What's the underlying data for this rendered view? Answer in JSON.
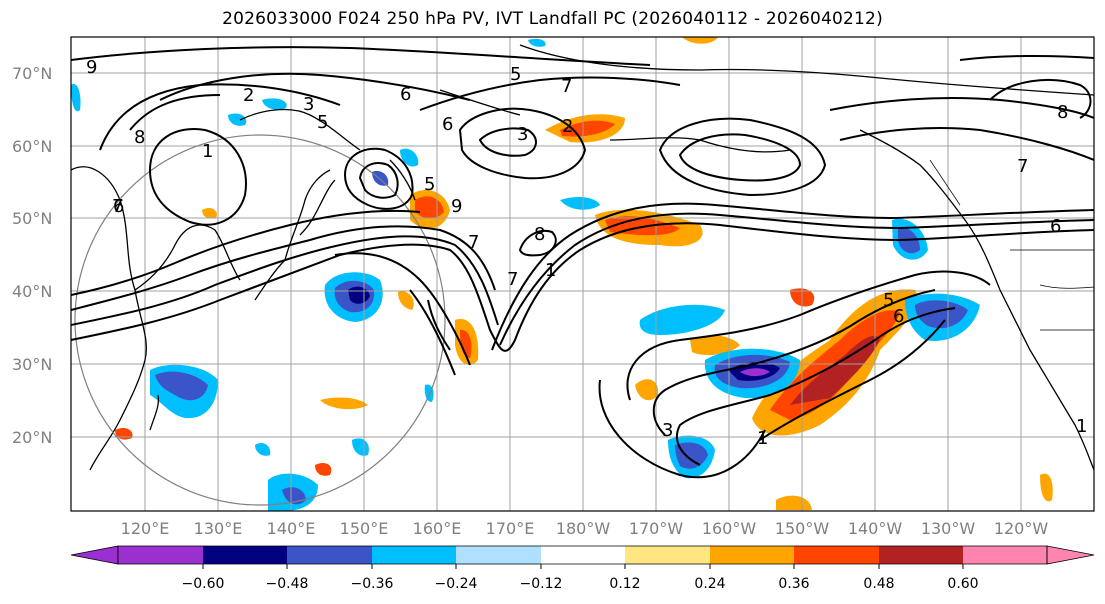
{
  "title": "2026033000 F024 250 hPa PV, IVT Landfall PC (2026040112 - 2026040212)",
  "lat_labels": [
    "70°N",
    "60°N",
    "50°N",
    "40°N",
    "30°N",
    "20°N"
  ],
  "lon_labels": [
    "120°E",
    "130°E",
    "140°E",
    "150°E",
    "160°E",
    "170°E",
    "180°W",
    "170°W",
    "160°W",
    "150°W",
    "140°W",
    "130°W",
    "120°W"
  ],
  "colorbar": {
    "tick_labels": [
      "−0.60",
      "−0.48",
      "−0.36",
      "−0.24",
      "−0.12",
      "0.12",
      "0.24",
      "0.36",
      "0.48",
      "0.60"
    ],
    "colors": [
      "#9b30d0",
      "#000080",
      "#3a55c8",
      "#00bfff",
      "#b0e0ff",
      "#ffffff",
      "#ffe680",
      "#ffa500",
      "#ff4500",
      "#b22222",
      "#ff85b0"
    ]
  },
  "pv_contour_labels": [
    "9",
    "8",
    "1",
    "7",
    "2",
    "3",
    "5",
    "6",
    "7",
    "5",
    "7",
    "3",
    "6",
    "5",
    "9",
    "8",
    "7",
    "2",
    "1",
    "1",
    "6",
    "3",
    "5",
    "1",
    "6",
    "8",
    "7",
    "6"
  ]
}
